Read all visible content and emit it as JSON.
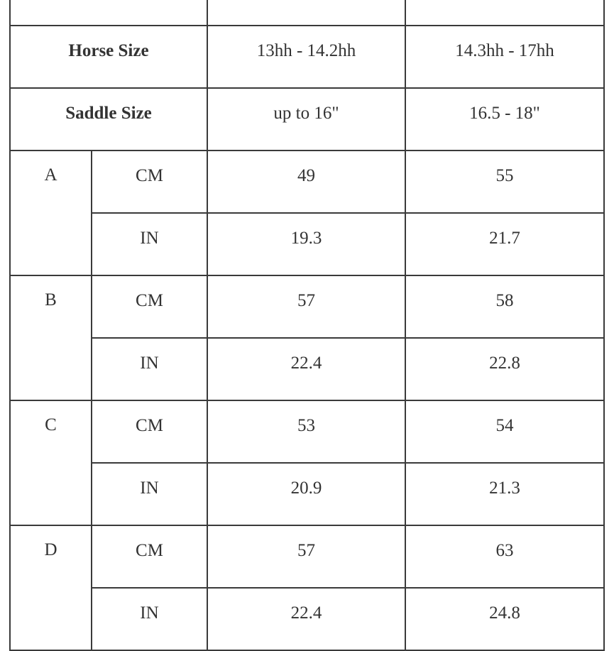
{
  "header_row": {
    "label": "",
    "col1": "",
    "col2": ""
  },
  "horse_size": {
    "label": "Horse Size",
    "col1": "13hh - 14.2hh",
    "col2": "14.3hh - 17hh"
  },
  "saddle_size": {
    "label": "Saddle Size",
    "col1": "up to 16\"",
    "col2": "16.5 - 18\""
  },
  "measurements": [
    {
      "letter": "A",
      "rows": [
        {
          "unit": "CM",
          "col1": "49",
          "col2": "55"
        },
        {
          "unit": "IN",
          "col1": "19.3",
          "col2": "21.7"
        }
      ]
    },
    {
      "letter": "B",
      "rows": [
        {
          "unit": "CM",
          "col1": "57",
          "col2": "58"
        },
        {
          "unit": "IN",
          "col1": "22.4",
          "col2": "22.8"
        }
      ]
    },
    {
      "letter": "C",
      "rows": [
        {
          "unit": "CM",
          "col1": "53",
          "col2": "54"
        },
        {
          "unit": "IN",
          "col1": "20.9",
          "col2": "21.3"
        }
      ]
    },
    {
      "letter": "D",
      "rows": [
        {
          "unit": "CM",
          "col1": "57",
          "col2": "63"
        },
        {
          "unit": "IN",
          "col1": "22.4",
          "col2": "24.8"
        }
      ]
    }
  ]
}
